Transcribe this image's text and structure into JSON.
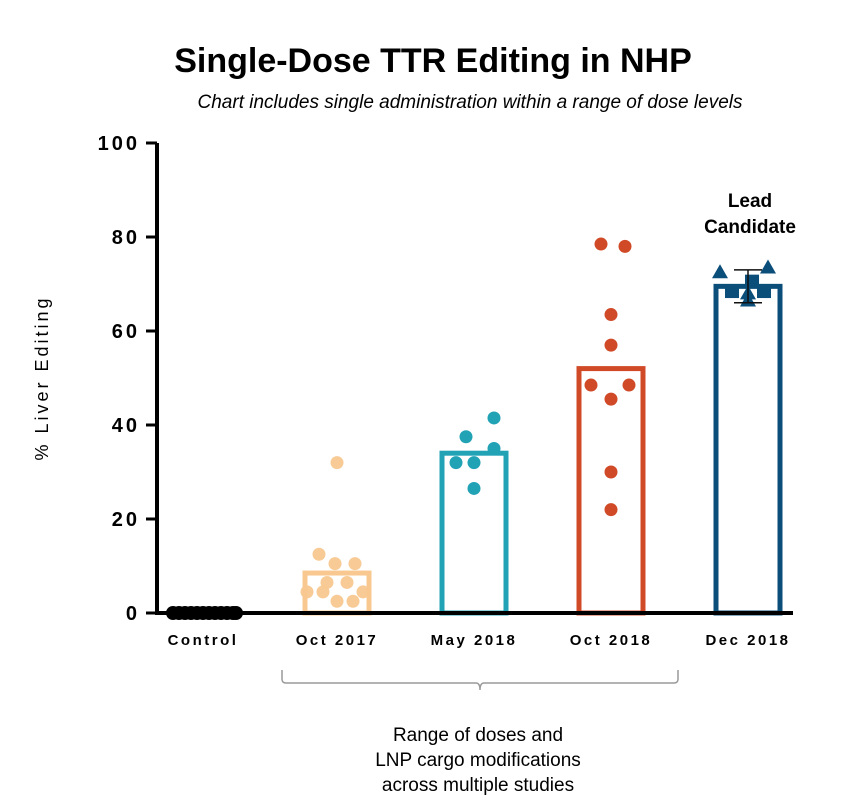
{
  "chart_data": {
    "type": "bar",
    "title": "Single-Dose TTR Editing in NHP",
    "subtitle": "Chart includes single administration within a range of dose levels",
    "ylabel": "% Liver Editing",
    "xlabel": "",
    "ylim": [
      0,
      100
    ],
    "yticks": [
      "0",
      "20",
      "40",
      "60",
      "80",
      "100"
    ],
    "categories": [
      "Control",
      "Oct 2017",
      "May 2018",
      "Oct 2018",
      "Dec 2018"
    ],
    "values": [
      0,
      8.5,
      34,
      52,
      69.5
    ],
    "colors": [
      "#000000",
      "#f8c890",
      "#22a2b5",
      "#d04a28",
      "#0b4e7a"
    ],
    "points": [
      [
        0,
        0,
        0,
        0,
        0,
        0,
        0,
        0,
        0,
        0,
        0,
        0
      ],
      [
        32,
        12.5,
        10.5,
        10.5,
        6.5,
        6.5,
        4.5,
        4.5,
        4.5,
        2.5,
        2.5
      ],
      [
        41.5,
        37.5,
        35,
        32,
        32,
        26.5
      ],
      [
        78.5,
        78,
        63.5,
        57,
        48.5,
        48.5,
        45.5,
        30,
        22
      ],
      [
        72.5,
        73.5,
        70.5,
        68.5,
        68.5,
        66.5,
        68
      ]
    ],
    "error_bars": [
      null,
      null,
      null,
      null,
      [
        66,
        73
      ]
    ],
    "annotations": [
      "Lead Candidate"
    ],
    "bracket_note": "Range of doses and LNP cargo modifications across multiple studies",
    "grid": false,
    "legend": "none"
  },
  "annotation": {
    "lead_line1": "Lead",
    "lead_line2": "Candidate"
  },
  "note": {
    "line1": "Range of doses and",
    "line2": "LNP cargo modifications",
    "line3": "across multiple studies"
  }
}
